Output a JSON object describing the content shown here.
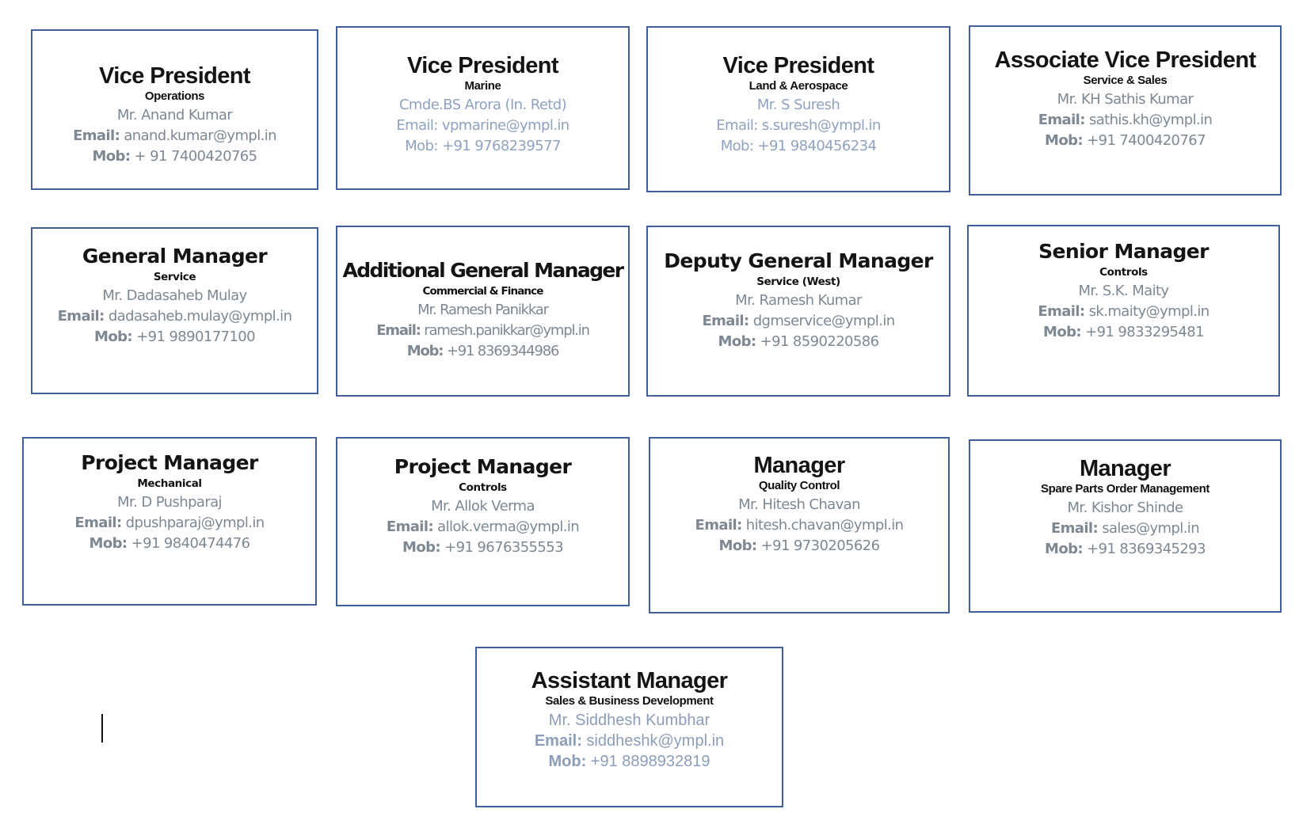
{
  "cards": [
    {
      "title": "Vice President",
      "department": "Operations",
      "name": "Mr. Anand Kumar",
      "email_label": "Email:",
      "email": " anand.kumar@ympl.in",
      "mob_label": "Mob:",
      "mob": " + 91 7400420765"
    },
    {
      "title": "Vice President",
      "department": "Marine",
      "name": "Cmde.BS Arora (In. Retd)",
      "email_label": "Email:",
      "email": " vpmarine@ympl.in",
      "mob_label": "Mob:",
      "mob": " +91 9768239577"
    },
    {
      "title": "Vice President",
      "department": "Land & Aerospace",
      "name": "Mr. S Suresh",
      "email_label": "Email:",
      "email": " s.suresh@ympl.in",
      "mob_label": "Mob:",
      "mob": " +91 9840456234"
    },
    {
      "title": "Associate Vice President",
      "department": "Service & Sales",
      "name": "Mr. KH Sathis Kumar",
      "email_label": "Email:",
      "email": " sathis.kh@ympl.in",
      "mob_label": "Mob:",
      "mob": " +91 7400420767"
    },
    {
      "title": "General Manager",
      "department": "Service",
      "name": "Mr. Dadasaheb Mulay",
      "email_label": "Email:",
      "email": " dadasaheb.mulay@ympl.in",
      "mob_label": "Mob:",
      "mob": " +91 9890177100"
    },
    {
      "title": "Additional General Manager",
      "department": "Commercial & Finance",
      "name": "Mr. Ramesh Panikkar",
      "email_label": "Email:",
      "email": " ramesh.panikkar@ympl.in",
      "mob_label": "Mob:",
      "mob": " +91 8369344986"
    },
    {
      "title": "Deputy General Manager",
      "department": "Service (West)",
      "name": "Mr. Ramesh Kumar",
      "email_label": "Email:",
      "email": " dgmservice@ympl.in",
      "mob_label": "Mob:",
      "mob": " +91 8590220586"
    },
    {
      "title": "Senior Manager",
      "department": "Controls",
      "name": "Mr. S.K. Maity",
      "email_label": "Email:",
      "email": " sk.maity@ympl.in",
      "mob_label": "Mob:",
      "mob": " +91 9833295481"
    },
    {
      "title": "Project Manager",
      "department": "Mechanical",
      "name": "Mr. D Pushparaj",
      "email_label": "Email:",
      "email": " dpushparaj@ympl.in",
      "mob_label": "Mob:",
      "mob": " +91 9840474476"
    },
    {
      "title": "Project Manager",
      "department": "Controls",
      "name": "Mr. Allok Verma",
      "email_label": "Email:",
      "email": " allok.verma@ympl.in",
      "mob_label": "Mob:",
      "mob": " +91 9676355553"
    },
    {
      "title": "Manager",
      "department": "Quality Control",
      "name": "Mr. Hitesh Chavan",
      "email_label": "Email:",
      "email": " hitesh.chavan@ympl.in",
      "mob_label": "Mob:",
      "mob": " +91 9730205626"
    },
    {
      "title": "Manager",
      "department": "Spare Parts Order Management",
      "name": "Mr. Kishor Shinde",
      "email_label": "Email:",
      "email": " sales@ympl.in",
      "mob_label": "Mob:",
      "mob": " +91 8369345293"
    },
    {
      "title": "Assistant Manager",
      "department": "Sales & Business Development",
      "name": "Mr. Siddhesh Kumbhar",
      "email_label": "Email:",
      "email": " siddheshk@ympl.in",
      "mob_label": "Mob:",
      "mob": " +91 8898932819"
    }
  ],
  "colors": {
    "border": "#41609a",
    "text_grey": "#7d8893",
    "text_blue_grey": "#8fa2bf"
  }
}
